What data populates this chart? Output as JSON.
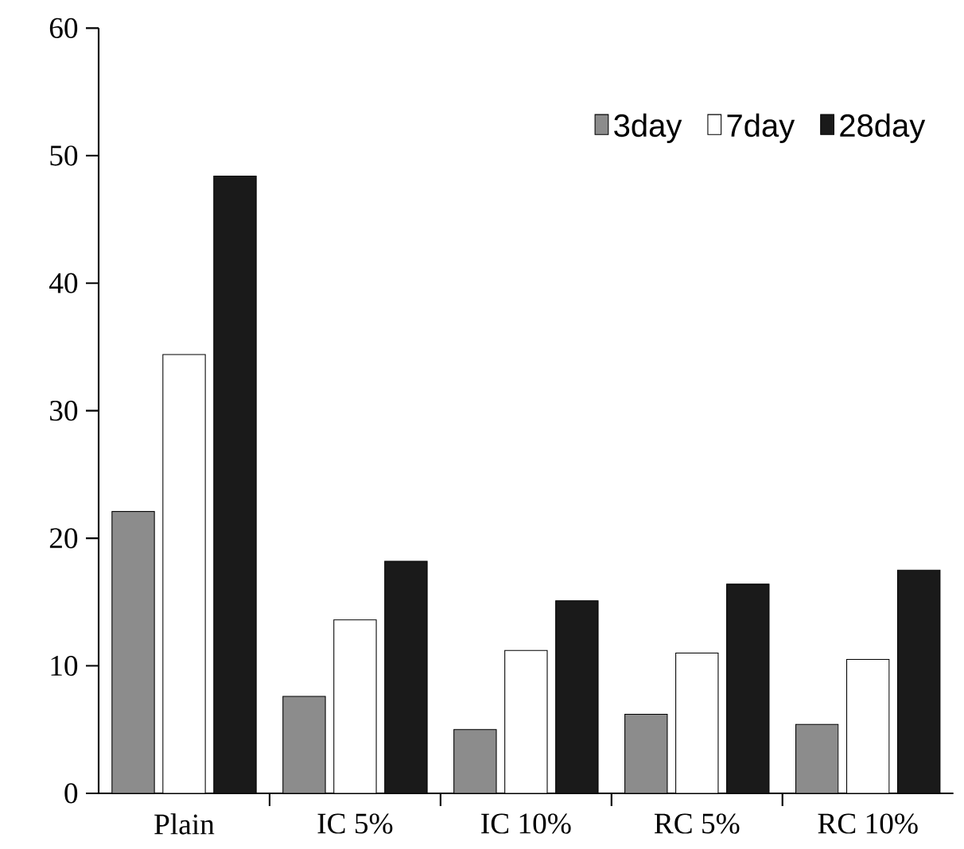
{
  "chart_data": {
    "type": "bar",
    "categories": [
      "Plain",
      "IC 5%",
      "IC 10%",
      "RC 5%",
      "RC 10%"
    ],
    "series": [
      {
        "name": "3day",
        "color": "#8c8c8c",
        "values": [
          22.1,
          7.6,
          5.0,
          6.2,
          5.4
        ]
      },
      {
        "name": "7day",
        "color": "#ffffff",
        "values": [
          34.4,
          13.6,
          11.2,
          11.0,
          10.5
        ]
      },
      {
        "name": "28day",
        "color": "#1a1a1a",
        "values": [
          48.4,
          18.2,
          15.1,
          16.4,
          17.5
        ]
      }
    ],
    "ylim": [
      0,
      60
    ],
    "yticks": [
      0,
      10,
      20,
      30,
      40,
      50,
      60
    ],
    "grid": false,
    "legend": "top right"
  }
}
